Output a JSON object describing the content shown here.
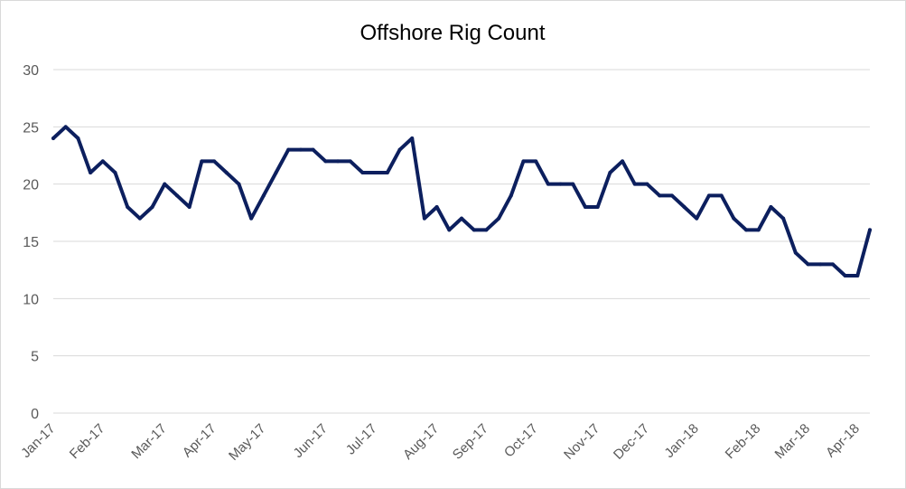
{
  "chart_data": {
    "type": "line",
    "title": "Offshore Rig Count",
    "xlabel": "",
    "ylabel": "",
    "ylim": [
      0,
      30
    ],
    "yticks": [
      0,
      5,
      10,
      15,
      20,
      25,
      30
    ],
    "grid": true,
    "legend": "none",
    "color": "#0c1f5e",
    "x_tick_labels": [
      "Jan-17",
      "Feb-17",
      "Mar-17",
      "Apr-17",
      "May-17",
      "Jun-17",
      "Jul-17",
      "Aug-17",
      "Sep-17",
      "Oct-17",
      "Nov-17",
      "Dec-17",
      "Jan-18",
      "Feb-18",
      "Mar-18",
      "Apr-18"
    ],
    "x_tick_positions": [
      0,
      4,
      9,
      13,
      17,
      22,
      26,
      31,
      35,
      39,
      44,
      48,
      52,
      57,
      61,
      65
    ],
    "series": [
      {
        "values": [
          24,
          25,
          24,
          21,
          22,
          21,
          18,
          17,
          18,
          20,
          19,
          18,
          22,
          22,
          21,
          20,
          17,
          19,
          21,
          23,
          23,
          23,
          22,
          22,
          22,
          21,
          21,
          21,
          23,
          24,
          17,
          18,
          16,
          17,
          16,
          16,
          17,
          19,
          22,
          22,
          20,
          20,
          20,
          18,
          18,
          21,
          22,
          20,
          20,
          19,
          19,
          18,
          17,
          19,
          19,
          17,
          16,
          16,
          18,
          17,
          14,
          13,
          13,
          13,
          12,
          12,
          16
        ]
      }
    ]
  }
}
